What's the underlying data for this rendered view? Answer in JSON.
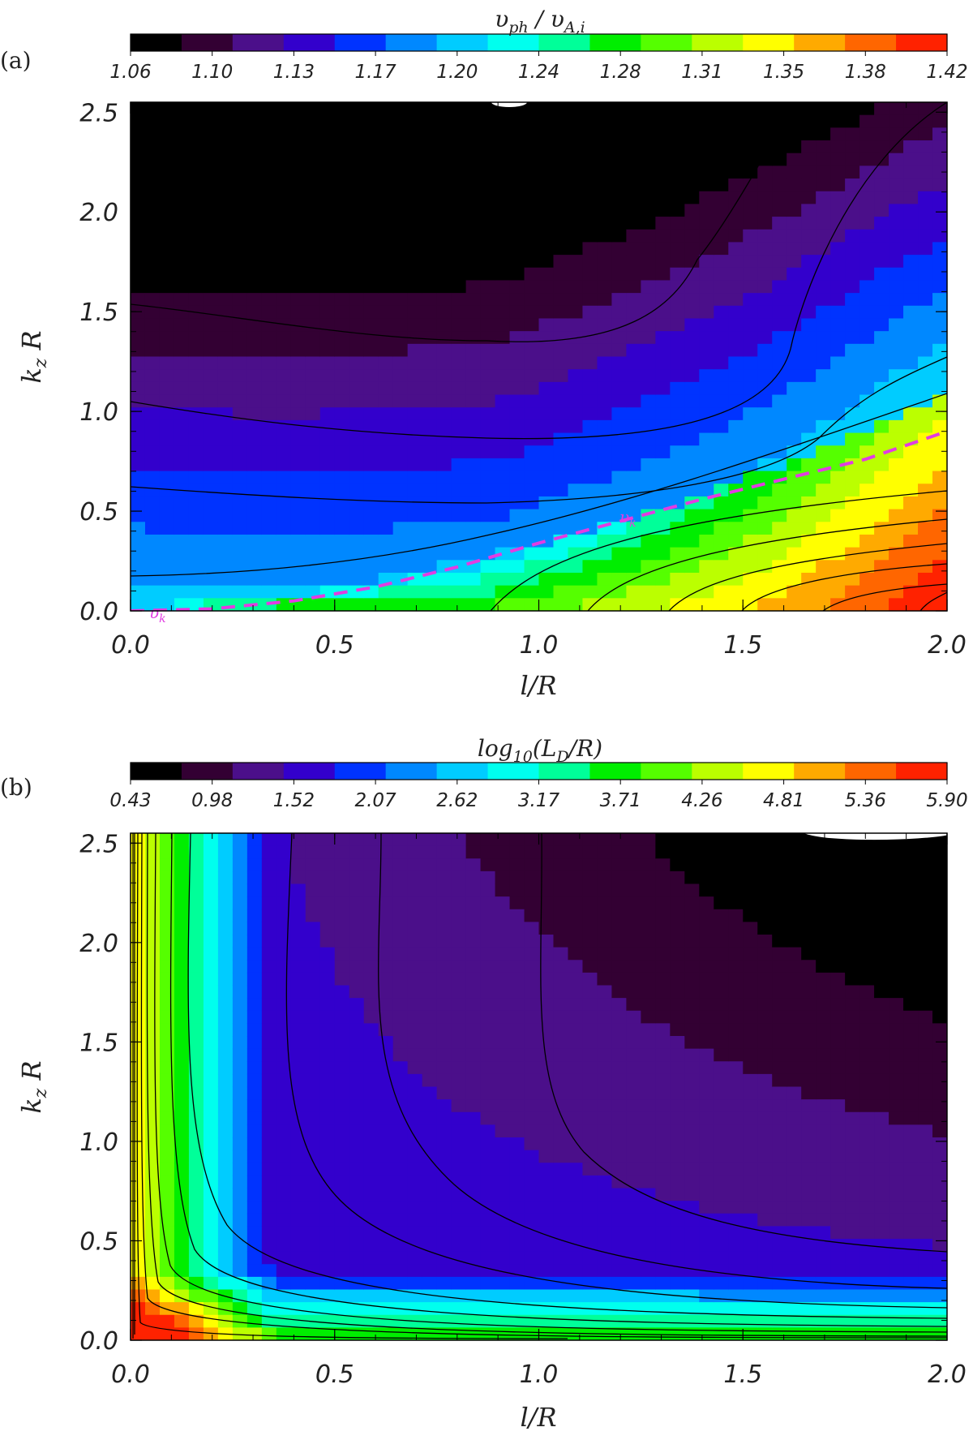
{
  "palette": [
    "#000000",
    "#330033",
    "#4b0f8a",
    "#3300cc",
    "#0033ff",
    "#0088ff",
    "#00ccff",
    "#00ffee",
    "#00ff99",
    "#00ee00",
    "#55ff00",
    "#bbff00",
    "#ffff00",
    "#ffaa00",
    "#ff6600",
    "#ff2200"
  ],
  "chart_data": [
    {
      "type": "heatmap",
      "panel_label": "(a)",
      "colorbar_label": "υ_ph / υ_A,i",
      "colorbar_label_parts": {
        "var1": "υ",
        "sub1": "ph",
        "sep": " / ",
        "var2": "υ",
        "sub2": "A,i"
      },
      "colorbar_ticks": [
        "1.06",
        "1.10",
        "1.13",
        "1.17",
        "1.20",
        "1.24",
        "1.28",
        "1.31",
        "1.35",
        "1.38",
        "1.42"
      ],
      "value_range": [
        1.06,
        1.42
      ],
      "xlabel": "l/R",
      "ylabel_parts": {
        "var": "k",
        "sub": "z",
        "rest": " R"
      },
      "xlim": [
        0.0,
        2.0
      ],
      "ylim": [
        0.0,
        2.55
      ],
      "x_ticks": [
        "0.0",
        "0.5",
        "1.0",
        "1.5",
        "2.0"
      ],
      "y_ticks": [
        "0.0",
        "0.5",
        "1.0",
        "1.5",
        "2.0",
        "2.5"
      ],
      "annotation": {
        "text": "υ_k",
        "var": "υ",
        "sub": "k",
        "x": [
          0.0,
          0.2,
          0.4,
          0.6,
          0.8,
          1.0,
          1.2,
          1.4,
          1.6,
          1.8,
          2.0
        ],
        "y": [
          0.0,
          0.01,
          0.05,
          0.12,
          0.22,
          0.34,
          0.45,
          0.56,
          0.66,
          0.76,
          0.9
        ]
      }
    },
    {
      "type": "heatmap",
      "panel_label": "(b)",
      "colorbar_label": "log10(L_D / R)",
      "colorbar_label_parts": {
        "pre": "log",
        "sub1": "10",
        "open": "(L",
        "sub2": "D",
        "post": "/R)"
      },
      "colorbar_ticks": [
        "0.43",
        "0.98",
        "1.52",
        "2.07",
        "2.62",
        "3.17",
        "3.71",
        "4.26",
        "4.81",
        "5.36",
        "5.90"
      ],
      "value_range": [
        0.43,
        5.9
      ],
      "xlabel": "l/R",
      "ylabel_parts": {
        "var": "k",
        "sub": "z",
        "rest": " R"
      },
      "xlim": [
        0.0,
        2.0
      ],
      "ylim": [
        0.0,
        2.55
      ],
      "x_ticks": [
        "0.0",
        "0.5",
        "1.0",
        "1.5",
        "2.0"
      ],
      "y_ticks": [
        "0.0",
        "0.5",
        "1.0",
        "1.5",
        "2.0",
        "2.5"
      ]
    }
  ]
}
